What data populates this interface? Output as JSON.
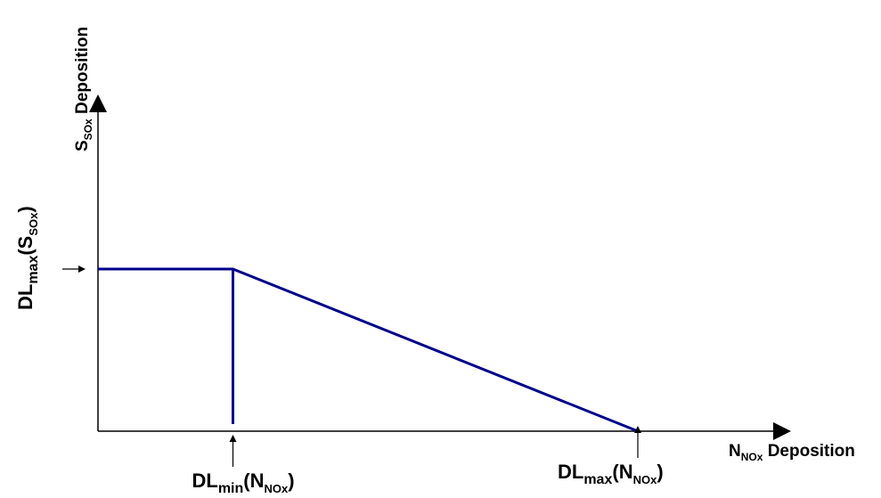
{
  "chart_data": {
    "type": "line",
    "title": "",
    "x_axis": {
      "label_main": "N",
      "label_sub": "NOx",
      "label_tail": "Deposition",
      "range": [
        0,
        1
      ],
      "ticks": [
        {
          "base": "DL",
          "base_sub": "min",
          "arg": "N",
          "arg_sub": "NOx",
          "value": 0.25
        },
        {
          "base": "DL",
          "base_sub": "max",
          "arg": "N",
          "arg_sub": "NOx",
          "value": 1.0
        }
      ]
    },
    "y_axis": {
      "label_main": "S",
      "label_sub": "SOx",
      "label_tail": "Deposition",
      "range": [
        0,
        1
      ],
      "tick": {
        "base": "DL",
        "base_sub": "max",
        "arg": "S",
        "arg_sub": "SOx",
        "value": 0.5
      }
    },
    "series": [
      {
        "points": [
          {
            "x": 0,
            "y": 0.5
          },
          {
            "x": 0.25,
            "y": 0.5
          },
          {
            "x": 1.0,
            "y": 0
          }
        ],
        "color": "#00008B"
      }
    ],
    "reference_lines": [
      {
        "orientation": "vertical",
        "x": 0.25,
        "from_y": 0,
        "to_y": 0.5,
        "color": "#00008B"
      }
    ],
    "grid": false,
    "legend": "none"
  }
}
